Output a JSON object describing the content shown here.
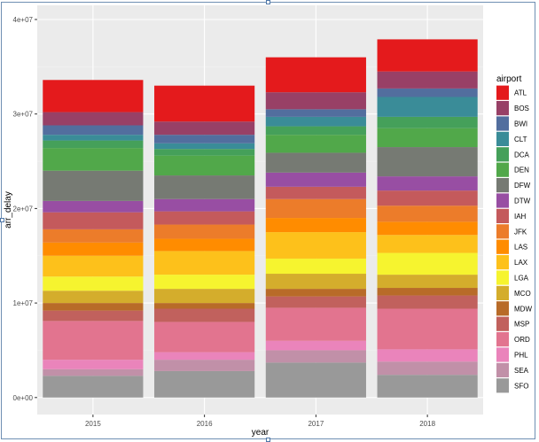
{
  "chart_data": {
    "type": "bar",
    "stacked": true,
    "xlabel": "year",
    "ylabel": "arr_delay",
    "categories": [
      "2015",
      "2016",
      "2017",
      "2018"
    ],
    "y_ticks": [
      0,
      10000000,
      20000000,
      30000000,
      40000000
    ],
    "y_tick_labels": [
      "0e+00",
      "1e+07",
      "2e+07",
      "3e+07",
      "4e+07"
    ],
    "ylim": [
      -1800000,
      41500000
    ],
    "grid": true,
    "legend_position": "right",
    "legend_title": "airport",
    "stack_order_top_to_bottom": [
      "ATL",
      "BOS",
      "BWI",
      "CLT",
      "DCA",
      "DEN",
      "DFW",
      "DTW",
      "IAH",
      "JFK",
      "LAS",
      "LAX",
      "LGA",
      "MCO",
      "MDW",
      "MSP",
      "ORD",
      "PHL",
      "SEA",
      "SFO"
    ],
    "series": [
      {
        "name": "ATL",
        "color": "#e41a1c",
        "values": [
          3400000,
          3800000,
          3700000,
          3400000
        ]
      },
      {
        "name": "BOS",
        "color": "#984066",
        "values": [
          1400000,
          1400000,
          1800000,
          1800000
        ]
      },
      {
        "name": "BWI",
        "color": "#526e9e",
        "values": [
          1000000,
          900000,
          800000,
          900000
        ]
      },
      {
        "name": "CLT",
        "color": "#3a8c98",
        "values": [
          600000,
          600000,
          1000000,
          2100000
        ]
      },
      {
        "name": "DCA",
        "color": "#45a05a",
        "values": [
          800000,
          700000,
          900000,
          1200000
        ]
      },
      {
        "name": "DEN",
        "color": "#51a84a",
        "values": [
          2400000,
          2100000,
          1900000,
          2000000
        ]
      },
      {
        "name": "DFW",
        "color": "#767a73",
        "values": [
          3200000,
          2500000,
          2100000,
          3100000
        ]
      },
      {
        "name": "DTW",
        "color": "#984ea3",
        "values": [
          1200000,
          1300000,
          1500000,
          1500000
        ]
      },
      {
        "name": "IAH",
        "color": "#c45a5c",
        "values": [
          1800000,
          1400000,
          1300000,
          1600000
        ]
      },
      {
        "name": "JFK",
        "color": "#ec7c2a",
        "values": [
          1400000,
          1500000,
          2000000,
          1700000
        ]
      },
      {
        "name": "LAS",
        "color": "#ff8c00",
        "values": [
          1400000,
          1300000,
          1500000,
          1400000
        ]
      },
      {
        "name": "LAX",
        "color": "#fdc11b",
        "values": [
          2200000,
          2500000,
          2800000,
          1900000
        ]
      },
      {
        "name": "LGA",
        "color": "#f6f42f",
        "values": [
          1500000,
          1500000,
          1600000,
          2300000
        ]
      },
      {
        "name": "MCO",
        "color": "#d4ad2c",
        "values": [
          1300000,
          1500000,
          1600000,
          1400000
        ]
      },
      {
        "name": "MDW",
        "color": "#b86b28",
        "values": [
          800000,
          600000,
          800000,
          800000
        ]
      },
      {
        "name": "MSP",
        "color": "#c1615d",
        "values": [
          1100000,
          1400000,
          1200000,
          1400000
        ]
      },
      {
        "name": "ORD",
        "color": "#e2748f",
        "values": [
          4100000,
          3200000,
          3500000,
          4300000
        ]
      },
      {
        "name": "PHL",
        "color": "#ea84bb",
        "values": [
          1000000,
          800000,
          1000000,
          1300000
        ]
      },
      {
        "name": "SEA",
        "color": "#c190a8",
        "values": [
          700000,
          1200000,
          1300000,
          1400000
        ]
      },
      {
        "name": "SFO",
        "color": "#999999",
        "values": [
          2300000,
          2800000,
          3700000,
          2400000
        ]
      }
    ],
    "colors": {
      "panel_background": "#ebebeb",
      "grid_major": "#ffffff",
      "grid_minor": "#f2f2f2",
      "frame": "#6f8fb3"
    }
  }
}
